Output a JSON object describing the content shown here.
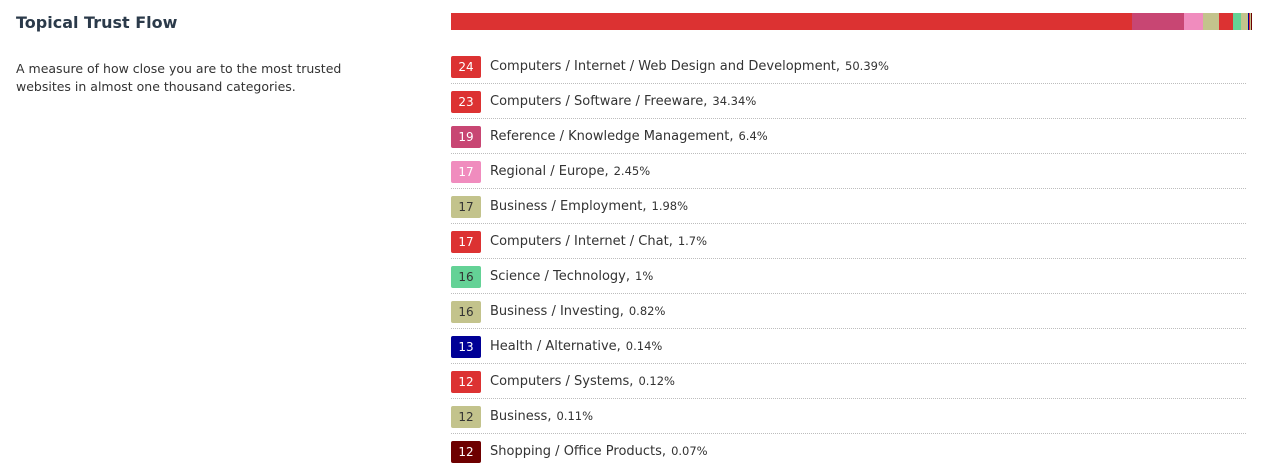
{
  "section": {
    "title": "Topical Trust Flow",
    "description": "A measure of how close you are to the most trusted websites in almost one thousand categories."
  },
  "topics": [
    {
      "score": "24",
      "category": "Computers / Internet / Web Design and Development",
      "percent": "50.39%",
      "share": 50.39,
      "color": "#dc3232",
      "text_color": "#ffffff"
    },
    {
      "score": "23",
      "category": "Computers / Software / Freeware",
      "percent": "34.34%",
      "share": 34.34,
      "color": "#dc3232",
      "text_color": "#ffffff"
    },
    {
      "score": "19",
      "category": "Reference / Knowledge Management",
      "percent": "6.4%",
      "share": 6.4,
      "color": "#c84673",
      "text_color": "#ffffff"
    },
    {
      "score": "17",
      "category": "Regional / Europe",
      "percent": "2.45%",
      "share": 2.45,
      "color": "#f08cbe",
      "text_color": "#ffffff"
    },
    {
      "score": "17",
      "category": "Business / Employment",
      "percent": "1.98%",
      "share": 1.98,
      "color": "#c3c38c",
      "text_color": "#333333"
    },
    {
      "score": "17",
      "category": "Computers / Internet / Chat",
      "percent": "1.7%",
      "share": 1.7,
      "color": "#dc3232",
      "text_color": "#ffffff"
    },
    {
      "score": "16",
      "category": "Science / Technology",
      "percent": "1%",
      "share": 1.0,
      "color": "#64d296",
      "text_color": "#333333"
    },
    {
      "score": "16",
      "category": "Business / Investing",
      "percent": "0.82%",
      "share": 0.82,
      "color": "#c3c38c",
      "text_color": "#333333"
    },
    {
      "score": "13",
      "category": "Health / Alternative",
      "percent": "0.14%",
      "share": 0.14,
      "color": "#000096",
      "text_color": "#ffffff"
    },
    {
      "score": "12",
      "category": "Computers / Systems",
      "percent": "0.12%",
      "share": 0.12,
      "color": "#dc3232",
      "text_color": "#ffffff"
    },
    {
      "score": "12",
      "category": "Business",
      "percent": "0.11%",
      "share": 0.11,
      "color": "#c3c38c",
      "text_color": "#333333"
    },
    {
      "score": "12",
      "category": "Shopping / Office Products",
      "percent": "0.07%",
      "share": 0.07,
      "color": "#6e0000",
      "text_color": "#ffffff"
    }
  ]
}
